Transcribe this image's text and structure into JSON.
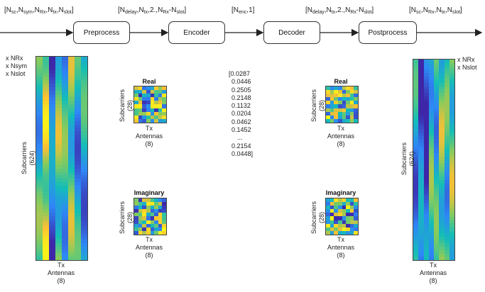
{
  "dims": {
    "input": {
      "base": "[N",
      "parts": [
        [
          "sc",
          ",N"
        ],
        [
          "sym",
          ",N"
        ],
        [
          "Rx",
          ",N"
        ],
        [
          "tx",
          ",N"
        ],
        [
          "slot",
          "]"
        ]
      ]
    },
    "pre_out": {
      "base": "[N",
      "parts": [
        [
          "delay",
          ",N"
        ],
        [
          "tx",
          ",2.,N"
        ],
        [
          "Rx",
          "-N"
        ],
        [
          "slot",
          "]"
        ]
      ]
    },
    "enc_out": {
      "base": "[N",
      "parts": [
        [
          "enc",
          ",1]"
        ]
      ]
    },
    "dec_out": {
      "base": "[N",
      "parts": [
        [
          "delay",
          ",N"
        ],
        [
          "tx",
          ",2.,N"
        ],
        [
          "Rx",
          "-N"
        ],
        [
          "slot",
          "]"
        ]
      ]
    },
    "output": {
      "base": "[N",
      "parts": [
        [
          "sc",
          ",N"
        ],
        [
          "Rx",
          ",N"
        ],
        [
          "tx",
          ",N"
        ],
        [
          "slot",
          "]"
        ]
      ]
    }
  },
  "stages": {
    "preprocess": "Preprocess",
    "encoder": "Encoder",
    "decoder": "Decoder",
    "postprocess": "Postprocess"
  },
  "left_multipliers": [
    "x NRx",
    "x Nsym",
    "x Nslot"
  ],
  "right_multipliers": [
    "x NRx",
    "x Nslot"
  ],
  "big_labels": {
    "y": "Subcarriers",
    "y_size": "(624)",
    "x": "Tx",
    "x2": "Antennas",
    "x_size": "(8)"
  },
  "small_labels": {
    "real": "Real",
    "imag": "Imaginary",
    "y": "Subcarriers",
    "y_size": "(28)",
    "x": "Tx",
    "x2": "Antennas",
    "x_size": "(8)"
  },
  "vector": [
    "[0.0287",
    "0.0446",
    "0.2505",
    "0.2148",
    "0.1132",
    "0.0204",
    "0.0462",
    "0.1452",
    "...",
    "0.2154",
    "0.0448]"
  ],
  "colors": {
    "line": "#222222",
    "map_low": "#3e26a8",
    "map_high": "#f9fb15"
  }
}
